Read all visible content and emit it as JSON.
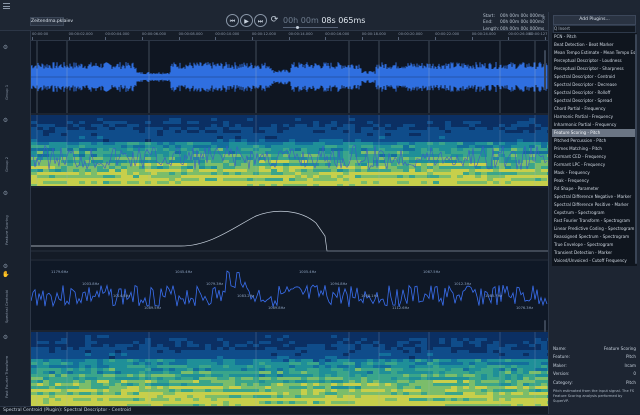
{
  "file_tab": "Zeitendma.pklaiev",
  "transport": {
    "rewind_icon": "⏮",
    "play_icon": "▶",
    "forward_icon": "⏭",
    "loop_icon": "⟳",
    "time_dim": "00h 00m",
    "time_main": "08s 065ms"
  },
  "time_range": {
    "start_label": "Start:",
    "start_value": "00h 00m 00s 000ms",
    "end_label": "End:",
    "end_value": "00h 00m 00s 000ms",
    "length_label": "Length:",
    "length_value": "00h 00m 00s 000ms"
  },
  "ruler_ticks": [
    "00:00:00",
    "00:00:02.000",
    "00:00:04.000",
    "00:00:06.000",
    "00:00:08.000",
    "00:00:10.000",
    "00:00:12.000",
    "00:00:14.000",
    "00:00:16.000",
    "00:00:18.000",
    "00:00:20.000",
    "00:00:22.000",
    "00:00:24.000",
    "00:00:26.000",
    "00:00:127"
  ],
  "tracks": {
    "group1": "Group 1",
    "group2": "Group 2",
    "feature_scoring": "Feature Scoring",
    "spectral_centroid": "Spectral Centroid",
    "fast_fourier": "Fast Fourier Transform"
  },
  "right_panel": {
    "add_plugins": "Add Plugins...",
    "search_value": "Q  Insert",
    "plugins": [
      "PCN - Pitch",
      "Beat Detection - Beat Marker",
      "Mean Tempo Estimate - Mean Tempo Estimat",
      "Perceptual Descriptor - Loudness",
      "Perceptual Descriptor - Sharpness",
      "Spectral Descriptor - Centroid",
      "Spectral Descriptor - Decrease",
      "Spectral Descriptor - Rolloff",
      "Spectral Descriptor - Spread",
      "Chord Partial - Frequency",
      "Harmonic Partial - Frequency",
      "Inharmonic Partial - Frequency",
      "Feature Scoring - Pitch",
      "Pitched Percussion - Pitch",
      "Primes Matching - Pitch",
      "Formant CED - Frequency",
      "Formant LPC - Frequency",
      "Mask - Frequency",
      "Peak - Frequency",
      "Rd Shape - Parameter",
      "Spectral Difference Negative - Marker",
      "Spectral Difference Positive - Marker",
      "Cepstrum - Spectrogram",
      "Fast Fourier Transform - Spectrogram",
      "Linear Predictive Coding - Spectrogram",
      "Reassigned Spectrum - Spectrogram",
      "True Envelope - Spectrogram",
      "Transient Detection - Marker",
      "Voiced/Unvoiced - Cutoff Frequency"
    ],
    "selected_index": 12,
    "info": [
      {
        "label": "Name:",
        "value": "Feature Scoring"
      },
      {
        "label": "Feature:",
        "value": "Pitch"
      },
      {
        "label": "Maker:",
        "value": "Ircam"
      },
      {
        "label": "Version:",
        "value": "0"
      },
      {
        "label": "Category:",
        "value": "Pitch"
      }
    ],
    "description": "Pitch estimated from the input signal. The FS Feature Scoring analysis performed by SuperVP."
  },
  "centroid_labels": [
    "1179.6Hz",
    "1003.8Hz",
    "1014.8Hz",
    "1089.5Hz",
    "1045.4Hz",
    "1079.3Hz",
    "1083.2Hz",
    "1089.8Hz",
    "1005.4Hz",
    "1094.8Hz",
    "1058.1Hz",
    "1112.6Hz",
    "1067.5Hz",
    "1012.3Hz",
    "1085.7Hz",
    "1076.3Hz"
  ],
  "status_text": "Spectral Centroid (Plugin): Spectral Descriptor - Centroid",
  "colors": {
    "waveform": "#2f6fe0",
    "centroid_line": "#3a6ff0",
    "accent": "#8ab4ff"
  }
}
